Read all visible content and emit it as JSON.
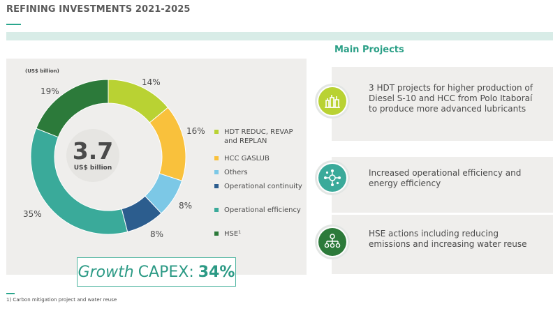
{
  "page": {
    "title": "REFINING INVESTMENTS 2021-2025"
  },
  "chart_data": {
    "type": "pie",
    "variant": "donut",
    "unit_label": "(US$ billion)",
    "center_value": "3.7",
    "center_unit": "US$ billion",
    "legend_position": "right",
    "slices": [
      {
        "label": "HDT REDUC, REVAP and REPLAN",
        "percent": 14,
        "display": "14%",
        "color": "#b9d233"
      },
      {
        "label": "HCC GASLUB",
        "percent": 16,
        "display": "16%",
        "color": "#f9c13c"
      },
      {
        "label": "Others",
        "percent": 8,
        "display": "8%",
        "color": "#7cc8e6"
      },
      {
        "label": "Operational continuity",
        "percent": 8,
        "display": "8%",
        "color": "#2c5d8e"
      },
      {
        "label": "Operational efficiency",
        "percent": 35,
        "display": "35%",
        "color": "#3aaa9a"
      },
      {
        "label": "HSE¹",
        "percent": 19,
        "display": "19%",
        "color": "#2c7a3a"
      }
    ]
  },
  "growth": {
    "word": "Growth",
    "label": "CAPEX:",
    "value": "34%"
  },
  "footnote": "1) Carbon mitigation project and water reuse",
  "projects": {
    "title": "Main Projects",
    "items": [
      {
        "icon": "refinery-icon",
        "icon_color": "#b9d233",
        "text": "3 HDT projects for higher production of Diesel S-10 and HCC from Polo Itaboraí to produce more advanced lubricants"
      },
      {
        "icon": "network-icon",
        "icon_color": "#3aaa9a",
        "text": "Increased operational efficiency and energy efficiency"
      },
      {
        "icon": "hse-flow-icon",
        "icon_color": "#2c7a3a",
        "text": "HSE actions including reducing emissions and increasing water reuse"
      }
    ]
  }
}
